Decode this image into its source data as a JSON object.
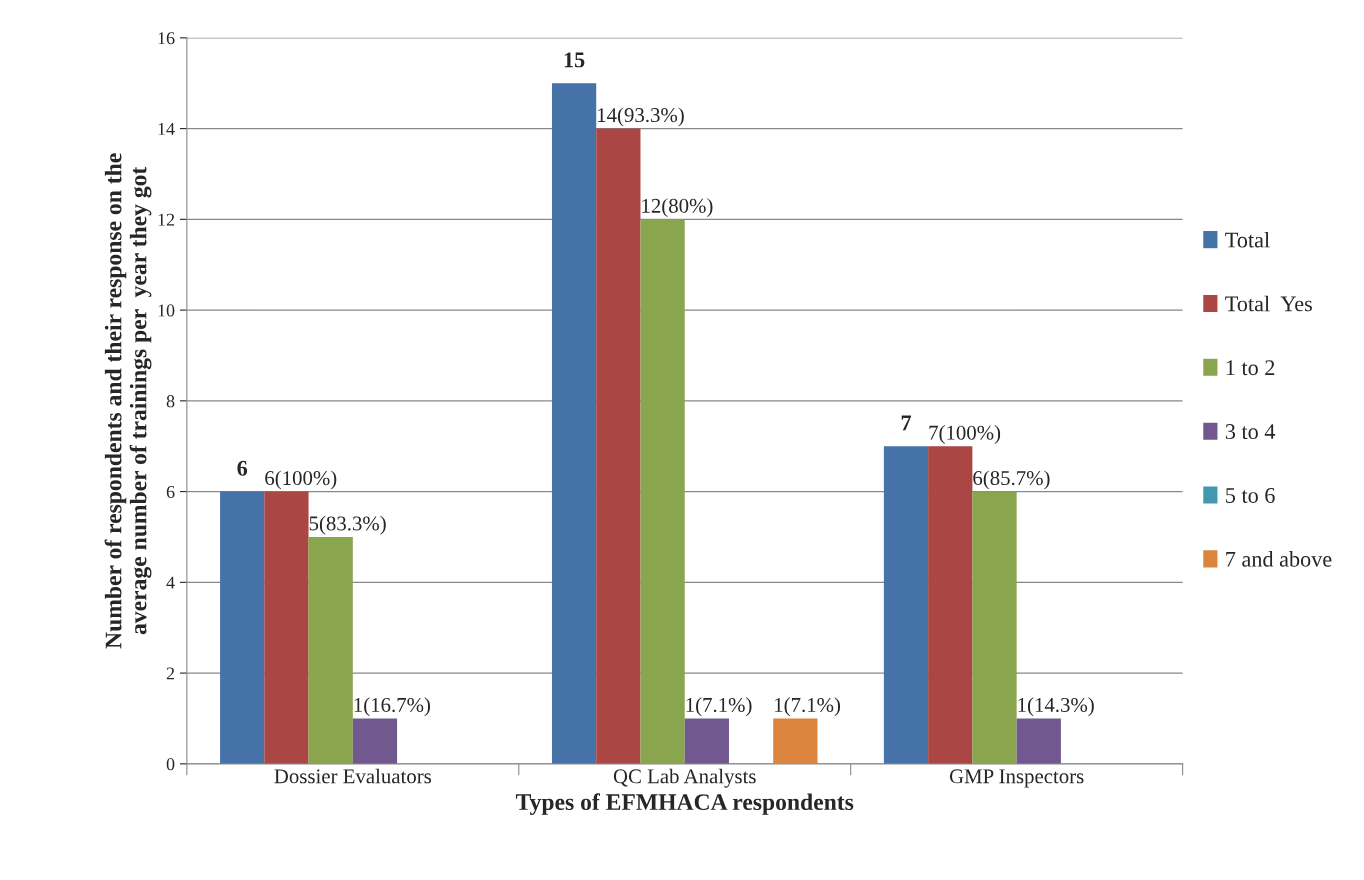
{
  "chart_data": {
    "type": "bar",
    "xlabel": "Types of EFMHACA respondents",
    "ylabel": "Number of respondents and their response on the\naverage number of trainings per  year they got",
    "categories": [
      "Dossier Evaluators",
      "QC Lab Analysts",
      "GMP Inspectors"
    ],
    "series": [
      {
        "name": "Total",
        "color": "#4572a7",
        "values": [
          6,
          15,
          7
        ],
        "value_labels": [
          "6",
          "15",
          "7"
        ]
      },
      {
        "name": "Total  Yes",
        "color": "#aa4643",
        "values": [
          6,
          14,
          7
        ],
        "value_labels": [
          "6(100%)",
          "14(93.3%)",
          "7(100%)"
        ]
      },
      {
        "name": "1 to 2",
        "color": "#89a54e",
        "values": [
          5,
          12,
          6
        ],
        "value_labels": [
          "5(83.3%)",
          "12(80%)",
          "6(85.7%)"
        ]
      },
      {
        "name": "3 to 4",
        "color": "#71588f",
        "values": [
          1,
          1,
          1
        ],
        "value_labels": [
          "1(16.7%)",
          "1(7.1%)",
          "1(14.3%)"
        ]
      },
      {
        "name": "5 to 6",
        "color": "#4198af",
        "values": [
          0,
          0,
          0
        ]
      },
      {
        "name": "7 and above",
        "color": "#db843d",
        "values": [
          0,
          1,
          0
        ],
        "value_labels": [
          null,
          "1(7.1%)",
          null
        ]
      }
    ],
    "ylim": [
      0,
      16
    ],
    "yticks": [
      0,
      2,
      4,
      6,
      8,
      10,
      12,
      14,
      16
    ],
    "grid": "y",
    "legend": "right"
  }
}
